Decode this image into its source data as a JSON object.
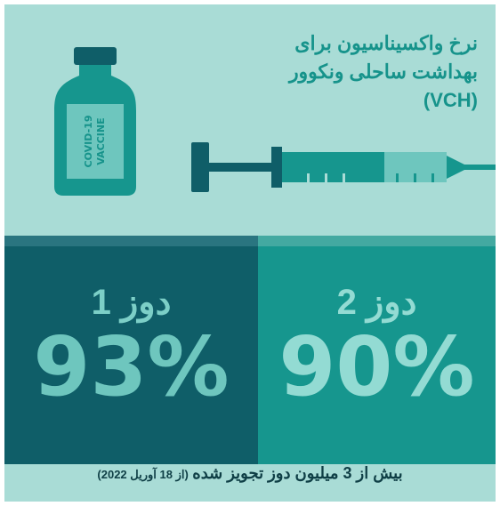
{
  "header": {
    "title_lines": [
      "نرخ واکسیناسیون برای",
      "بهداشت ساحلی ونکوور",
      "(VCH)"
    ]
  },
  "vial_label": [
    "COVID-19",
    "VACCINE"
  ],
  "panels": [
    {
      "label": "دوز 1",
      "value": "93%"
    },
    {
      "label": "دوز 2",
      "value": "90%"
    }
  ],
  "footer": {
    "main": "بیش از 3 میلیون دوز تجویز شده",
    "note": "(از 18 آوریل 2022)"
  }
}
